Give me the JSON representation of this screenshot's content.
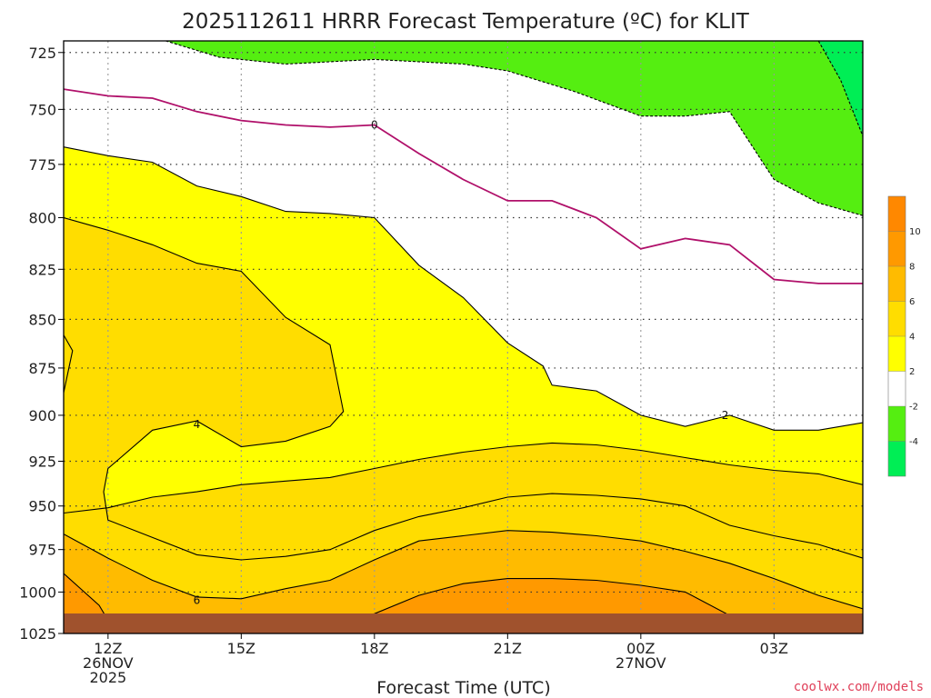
{
  "chart_data": {
    "type": "heatmap",
    "title": "2025112611 HRRR Forecast Temperature (ºC) for KLIT",
    "xlabel": "Forecast Time (UTC)",
    "ylabel": "",
    "x_ticks": [
      {
        "value": 12,
        "lines": [
          "12Z",
          "26NOV",
          "2025"
        ]
      },
      {
        "value": 15,
        "lines": [
          "15Z"
        ]
      },
      {
        "value": 18,
        "lines": [
          "18Z"
        ]
      },
      {
        "value": 21,
        "lines": [
          "21Z"
        ]
      },
      {
        "value": 24,
        "lines": [
          "00Z",
          "27NOV"
        ]
      },
      {
        "value": 27,
        "lines": [
          "03Z"
        ]
      }
    ],
    "xlim": [
      11,
      29
    ],
    "y_ticks": [
      725,
      750,
      775,
      800,
      825,
      850,
      875,
      900,
      925,
      950,
      975,
      1000,
      1025
    ],
    "ylim": [
      1025,
      720
    ],
    "y_scale": "log-pressure",
    "grid": true,
    "colorbar": {
      "levels": [
        -4,
        -2,
        2,
        4,
        6,
        8,
        10
      ],
      "ticks": [
        "10",
        "8",
        "6",
        "4",
        "2",
        "-2",
        "-4"
      ],
      "colors": [
        "#00ee55",
        "#55ee11",
        "#ffffff",
        "#ffff00",
        "#ffdd00",
        "#ffbb00",
        "#ff9900",
        "#ff8800"
      ]
    },
    "contour_labels": [
      {
        "label": "0",
        "x": 18.0,
        "y": 757
      },
      {
        "label": "2",
        "x": 25.9,
        "y": 900
      },
      {
        "label": "4",
        "x": 14.0,
        "y": 905
      },
      {
        "label": "6",
        "x": 14.0,
        "y": 1005
      }
    ],
    "series": [
      {
        "level": "-2",
        "points": [
          [
            13.3,
            720
          ],
          [
            14.5,
            727
          ],
          [
            16,
            730
          ],
          [
            18,
            728
          ],
          [
            20,
            730
          ],
          [
            21,
            733
          ],
          [
            22.5,
            742
          ],
          [
            24,
            753
          ],
          [
            25,
            753
          ],
          [
            26,
            751
          ],
          [
            27,
            782
          ],
          [
            28,
            793
          ],
          [
            29,
            799
          ]
        ]
      },
      {
        "level": "-4",
        "points": [
          [
            28,
            720
          ],
          [
            28.5,
            737
          ],
          [
            29,
            762
          ]
        ]
      },
      {
        "level": "0",
        "points": [
          [
            11,
            741
          ],
          [
            12,
            744
          ],
          [
            13,
            745
          ],
          [
            14,
            751
          ],
          [
            15,
            755
          ],
          [
            16,
            757
          ],
          [
            17,
            758
          ],
          [
            18,
            757
          ],
          [
            19,
            770
          ],
          [
            20,
            782
          ],
          [
            21,
            792
          ],
          [
            22,
            792
          ],
          [
            23,
            800
          ],
          [
            24,
            815
          ],
          [
            25,
            810
          ],
          [
            26,
            813
          ],
          [
            27,
            830
          ],
          [
            28,
            832
          ],
          [
            29,
            832
          ]
        ]
      },
      {
        "level": "2",
        "points": [
          [
            11,
            767
          ],
          [
            12,
            771
          ],
          [
            13,
            774
          ],
          [
            14,
            785
          ],
          [
            15,
            790
          ],
          [
            16,
            797
          ],
          [
            17,
            798
          ],
          [
            18,
            800
          ],
          [
            19,
            823
          ],
          [
            20,
            839
          ],
          [
            21,
            862
          ],
          [
            21.8,
            874
          ],
          [
            22,
            884
          ],
          [
            23,
            887
          ],
          [
            24,
            900
          ],
          [
            25,
            906
          ],
          [
            26,
            900
          ],
          [
            27,
            908
          ],
          [
            28,
            908
          ],
          [
            29,
            904
          ]
        ]
      },
      {
        "level": "2 (lower)",
        "points": [
          [
            11,
            954
          ],
          [
            12,
            951
          ],
          [
            13,
            945
          ],
          [
            14,
            942
          ],
          [
            15,
            938
          ],
          [
            16,
            936
          ],
          [
            17,
            934
          ],
          [
            18,
            929
          ],
          [
            19,
            924
          ],
          [
            20,
            920
          ],
          [
            21,
            917
          ],
          [
            22,
            915
          ],
          [
            23,
            916
          ],
          [
            24,
            919
          ],
          [
            25,
            923
          ],
          [
            26,
            927
          ],
          [
            27,
            930
          ],
          [
            28,
            932
          ],
          [
            29,
            938
          ]
        ]
      },
      {
        "level": "4",
        "points": [
          [
            11,
            800
          ],
          [
            12,
            806
          ],
          [
            13,
            813
          ],
          [
            14,
            822
          ],
          [
            15,
            826
          ],
          [
            16,
            849
          ],
          [
            17,
            863
          ],
          [
            17.3,
            898
          ],
          [
            17,
            906
          ],
          [
            16,
            914
          ],
          [
            15,
            917
          ],
          [
            14,
            903
          ],
          [
            13,
            908
          ],
          [
            12,
            929
          ],
          [
            11.9,
            942
          ],
          [
            12,
            958
          ],
          [
            13,
            968
          ],
          [
            14,
            978
          ],
          [
            15,
            981
          ],
          [
            16,
            979
          ],
          [
            17,
            975
          ],
          [
            18,
            964
          ],
          [
            19,
            956
          ],
          [
            20,
            951
          ],
          [
            21,
            945
          ],
          [
            22,
            943
          ],
          [
            23,
            944
          ],
          [
            24,
            946
          ],
          [
            25,
            950
          ],
          [
            26,
            961
          ],
          [
            27,
            967
          ],
          [
            28,
            972
          ],
          [
            29,
            980
          ]
        ]
      },
      {
        "level": "4 (left)",
        "points": [
          [
            11,
            858
          ],
          [
            11.2,
            866
          ],
          [
            11,
            888
          ]
        ]
      },
      {
        "level": "6",
        "points": [
          [
            11,
            966
          ],
          [
            12,
            980
          ],
          [
            13,
            993
          ],
          [
            14,
            1003
          ],
          [
            15,
            1004
          ],
          [
            16,
            998
          ],
          [
            17,
            993
          ],
          [
            18,
            981
          ],
          [
            19,
            970
          ],
          [
            20,
            967
          ],
          [
            21,
            964
          ],
          [
            22,
            965
          ],
          [
            23,
            967
          ],
          [
            24,
            970
          ],
          [
            25,
            976
          ],
          [
            26,
            983
          ],
          [
            27,
            992
          ],
          [
            28,
            1002
          ],
          [
            29,
            1010
          ]
        ]
      },
      {
        "level": "6 (left)",
        "points": [
          [
            11,
            989
          ],
          [
            11.8,
            1008
          ],
          [
            12,
            1017
          ],
          [
            11.5,
            1021
          ],
          [
            11,
            1022
          ]
        ]
      },
      {
        "level": "8",
        "points": [
          [
            16.5,
            1022
          ],
          [
            18,
            1013
          ],
          [
            19,
            1002
          ],
          [
            20,
            995
          ],
          [
            21,
            992
          ],
          [
            22,
            992
          ],
          [
            23,
            993
          ],
          [
            24,
            996
          ],
          [
            25,
            1000
          ],
          [
            26,
            1014
          ],
          [
            25.5,
            1022
          ]
        ]
      },
      {
        "level": "10",
        "points": [
          [
            18.5,
            1022
          ],
          [
            20,
            1015
          ],
          [
            21,
            1014
          ],
          [
            22,
            1015
          ],
          [
            23,
            1017
          ],
          [
            24,
            1021
          ],
          [
            24.5,
            1022
          ]
        ]
      }
    ],
    "terrain_top": 1022
  },
  "credit": "coolwx.com/models"
}
